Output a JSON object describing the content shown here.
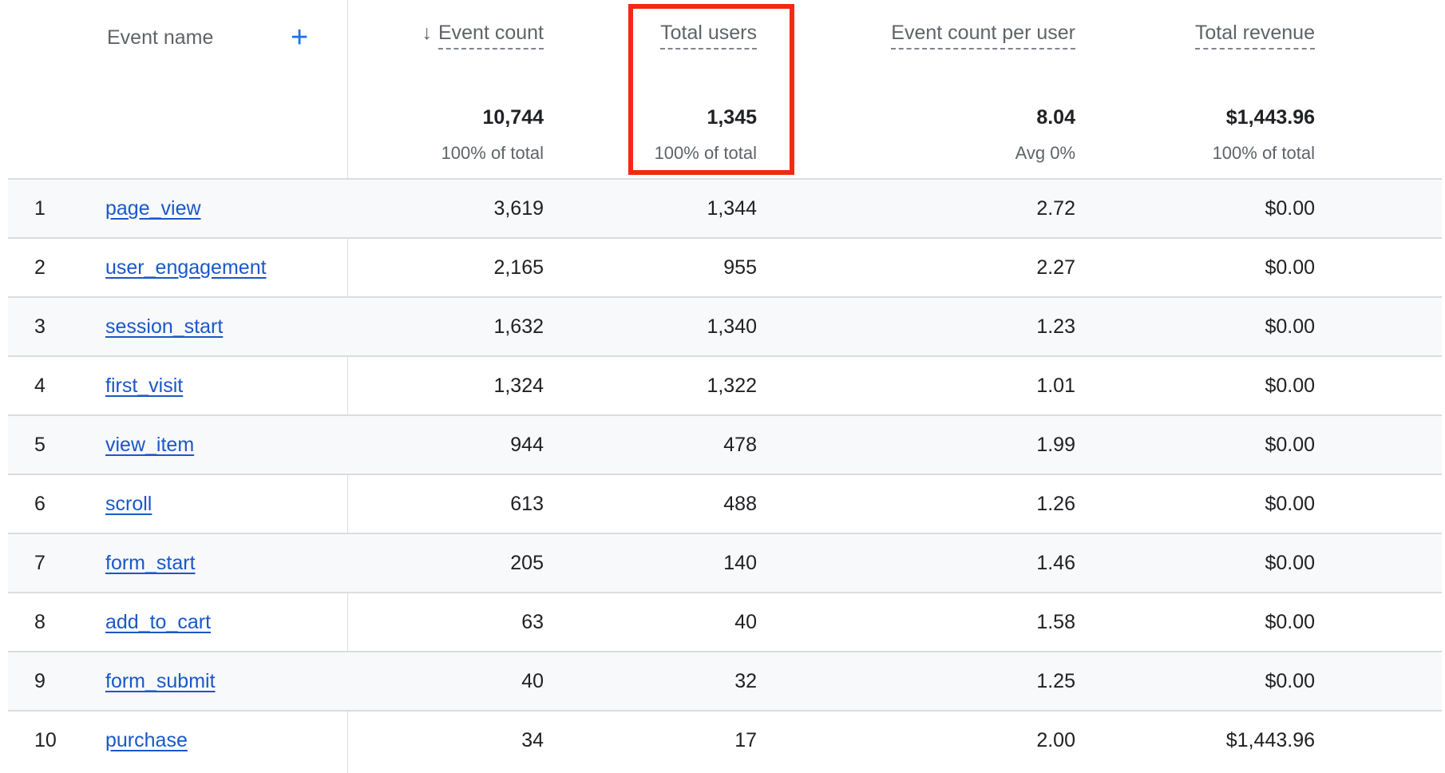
{
  "columns": {
    "event_name": "Event name",
    "event_count": "Event count",
    "total_users": "Total users",
    "event_count_per_user": "Event count per user",
    "total_revenue": "Total revenue"
  },
  "sort_icon": "arrow-down-icon",
  "add_dimension_icon": "plus-icon",
  "totals": {
    "event_count": "10,744",
    "event_count_sub": "100% of total",
    "total_users": "1,345",
    "total_users_sub": "100% of total",
    "event_count_per_user": "8.04",
    "event_count_per_user_sub": "Avg 0%",
    "total_revenue": "$1,443.96",
    "total_revenue_sub": "100% of total"
  },
  "highlight_color": "#f02a13",
  "rows": [
    {
      "index": "1",
      "name": "page_view",
      "event_count": "3,619",
      "total_users": "1,344",
      "per_user": "2.72",
      "revenue": "$0.00"
    },
    {
      "index": "2",
      "name": "user_engagement",
      "event_count": "2,165",
      "total_users": "955",
      "per_user": "2.27",
      "revenue": "$0.00"
    },
    {
      "index": "3",
      "name": "session_start",
      "event_count": "1,632",
      "total_users": "1,340",
      "per_user": "1.23",
      "revenue": "$0.00"
    },
    {
      "index": "4",
      "name": "first_visit",
      "event_count": "1,324",
      "total_users": "1,322",
      "per_user": "1.01",
      "revenue": "$0.00"
    },
    {
      "index": "5",
      "name": "view_item",
      "event_count": "944",
      "total_users": "478",
      "per_user": "1.99",
      "revenue": "$0.00"
    },
    {
      "index": "6",
      "name": "scroll",
      "event_count": "613",
      "total_users": "488",
      "per_user": "1.26",
      "revenue": "$0.00"
    },
    {
      "index": "7",
      "name": "form_start",
      "event_count": "205",
      "total_users": "140",
      "per_user": "1.46",
      "revenue": "$0.00"
    },
    {
      "index": "8",
      "name": "add_to_cart",
      "event_count": "63",
      "total_users": "40",
      "per_user": "1.58",
      "revenue": "$0.00"
    },
    {
      "index": "9",
      "name": "form_submit",
      "event_count": "40",
      "total_users": "32",
      "per_user": "1.25",
      "revenue": "$0.00"
    },
    {
      "index": "10",
      "name": "purchase",
      "event_count": "34",
      "total_users": "17",
      "per_user": "2.00",
      "revenue": "$1,443.96"
    }
  ]
}
